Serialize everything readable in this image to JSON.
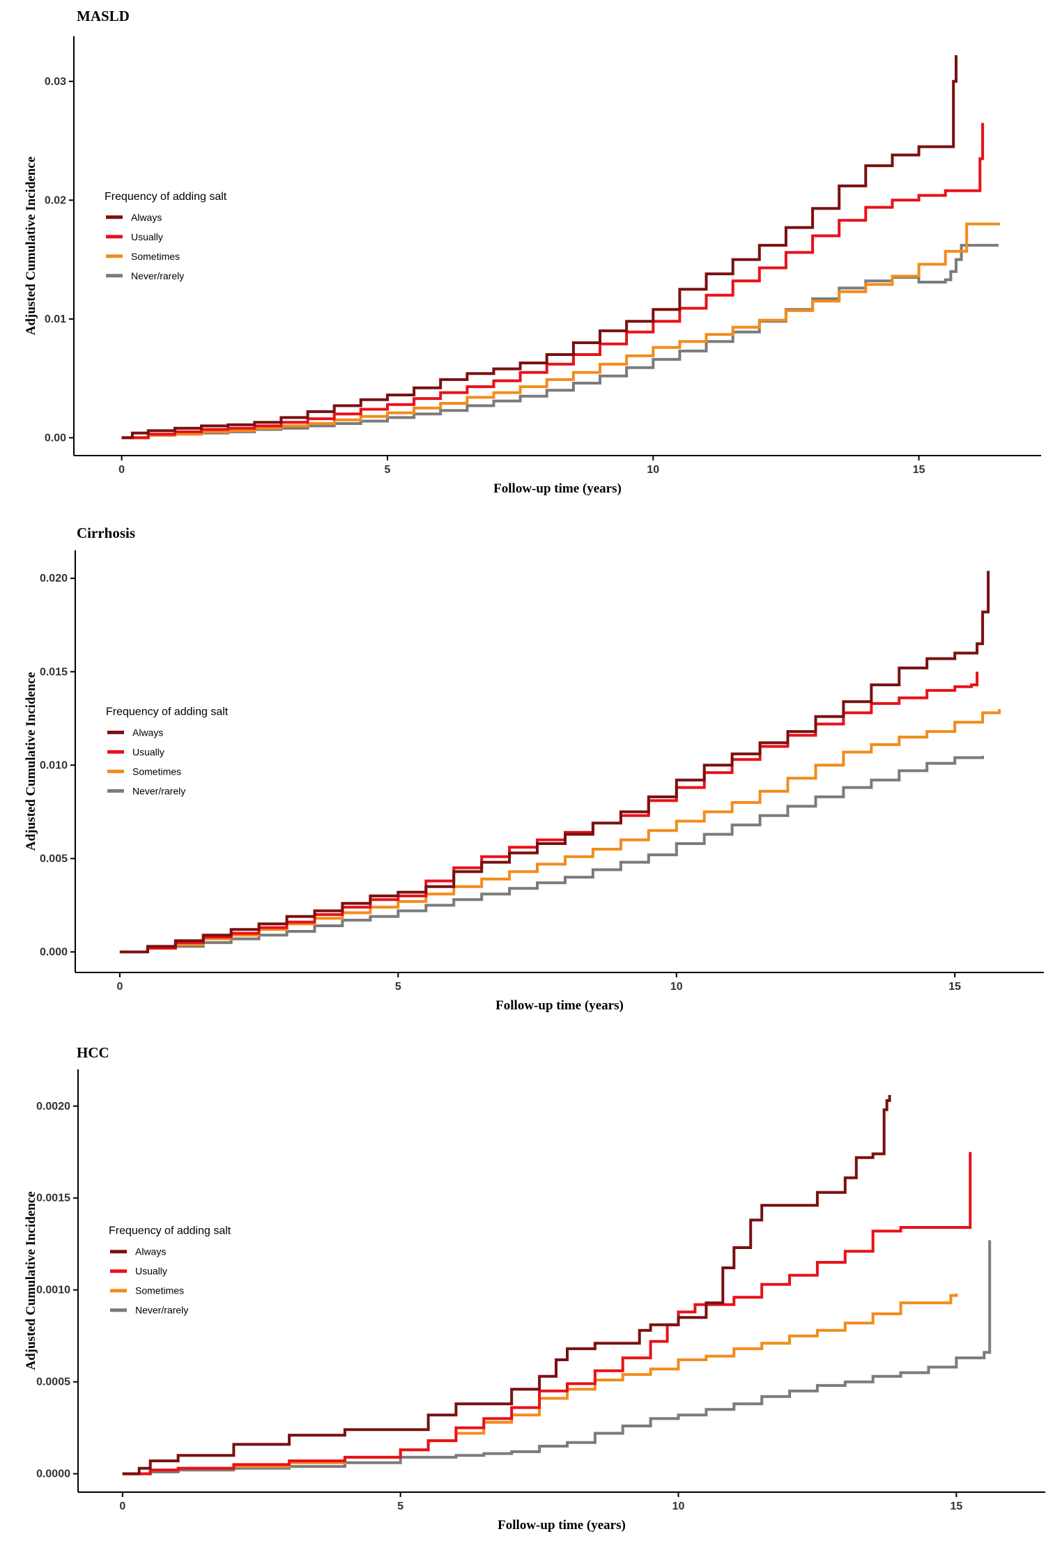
{
  "chart_data": [
    {
      "type": "line",
      "step": true,
      "title": "MASLD",
      "xlabel": "Follow-up time (years)",
      "ylabel": "Adjusted Cumulative Incidence",
      "xlim": [
        -0.9,
        17.3
      ],
      "ylim": [
        -0.0015,
        0.0338
      ],
      "xticks": [
        0,
        5,
        10,
        15
      ],
      "xtick_labels": [
        "0",
        "5",
        "10",
        "15"
      ],
      "yticks": [
        0,
        0.01,
        0.02,
        0.03
      ],
      "ytick_labels": [
        "0.00",
        "0.01",
        "0.02",
        "0.03"
      ],
      "legend_title": "Frequency of adding salt",
      "legend_position": "left",
      "series": [
        {
          "name": "Always",
          "color": "#7a1010",
          "x": [
            0,
            0.2,
            0.5,
            1,
            1.5,
            2,
            2.5,
            3,
            3.5,
            4,
            4.5,
            5,
            5.5,
            6,
            6.5,
            7,
            7.5,
            8,
            8.5,
            9,
            9.5,
            10,
            10.5,
            11,
            11.5,
            12,
            12.5,
            13,
            13.5,
            14,
            14.5,
            15,
            15.6,
            15.65,
            15.7,
            15.7
          ],
          "y": [
            0,
            0.0004,
            0.0006,
            0.0008,
            0.001,
            0.0011,
            0.0013,
            0.0017,
            0.0022,
            0.0027,
            0.0032,
            0.0036,
            0.0042,
            0.0049,
            0.0054,
            0.0058,
            0.0063,
            0.007,
            0.008,
            0.009,
            0.0098,
            0.0108,
            0.0125,
            0.0138,
            0.015,
            0.0162,
            0.0177,
            0.0193,
            0.0212,
            0.0229,
            0.0238,
            0.0245,
            0.0245,
            0.03,
            0.0312,
            0.0322
          ]
        },
        {
          "name": "Usually",
          "color": "#e8111a",
          "x": [
            0,
            0.5,
            1,
            1.5,
            2,
            2.5,
            3,
            3.5,
            4,
            4.5,
            5,
            5.5,
            6,
            6.5,
            7,
            7.5,
            8,
            8.5,
            9,
            9.5,
            10,
            10.5,
            11,
            11.5,
            12,
            12.5,
            13,
            13.5,
            14,
            14.5,
            15,
            15.5,
            16.1,
            16.15,
            16.2,
            16.2
          ],
          "y": [
            0,
            0.0003,
            0.0005,
            0.0007,
            0.0008,
            0.001,
            0.0013,
            0.0016,
            0.002,
            0.0024,
            0.0028,
            0.0033,
            0.0038,
            0.0043,
            0.0048,
            0.0055,
            0.0062,
            0.007,
            0.0079,
            0.0089,
            0.0098,
            0.0109,
            0.012,
            0.0132,
            0.0143,
            0.0156,
            0.017,
            0.0183,
            0.0194,
            0.02,
            0.0204,
            0.0208,
            0.0208,
            0.0235,
            0.0245,
            0.0265
          ]
        },
        {
          "name": "Sometimes",
          "color": "#f28c1c",
          "x": [
            0,
            0.5,
            1,
            1.5,
            2,
            2.5,
            3,
            3.5,
            4,
            4.5,
            5,
            5.5,
            6,
            6.5,
            7,
            7.5,
            8,
            8.5,
            9,
            9.5,
            10,
            10.5,
            11,
            11.5,
            12,
            12.5,
            13,
            13.5,
            14,
            14.5,
            15,
            15.5,
            15.85,
            15.9,
            16.5
          ],
          "y": [
            0,
            0.0002,
            0.0003,
            0.0005,
            0.0006,
            0.0008,
            0.001,
            0.0012,
            0.0015,
            0.0018,
            0.0021,
            0.0025,
            0.0029,
            0.0034,
            0.0038,
            0.0043,
            0.0049,
            0.0055,
            0.0062,
            0.0069,
            0.0076,
            0.0081,
            0.0087,
            0.0093,
            0.0099,
            0.0107,
            0.0115,
            0.0123,
            0.0129,
            0.0136,
            0.0146,
            0.0157,
            0.0157,
            0.018,
            0.0181
          ]
        },
        {
          "name": "Never/rarely",
          "color": "#7b7b7b",
          "x": [
            0,
            0.5,
            1,
            1.5,
            2,
            2.5,
            3,
            3.5,
            4,
            4.5,
            5,
            5.5,
            6,
            6.5,
            7,
            7.5,
            8,
            8.5,
            9,
            9.5,
            10,
            10.5,
            11,
            11.5,
            12,
            12.5,
            13,
            13.5,
            14,
            14.5,
            15,
            15.5,
            15.6,
            15.7,
            15.8,
            16.5
          ],
          "y": [
            0,
            0.0002,
            0.0003,
            0.0004,
            0.0005,
            0.0007,
            0.0008,
            0.001,
            0.0012,
            0.0014,
            0.0017,
            0.002,
            0.0023,
            0.0027,
            0.0031,
            0.0035,
            0.004,
            0.0046,
            0.0052,
            0.0059,
            0.0066,
            0.0073,
            0.0081,
            0.0089,
            0.0098,
            0.0108,
            0.0117,
            0.0126,
            0.0132,
            0.0135,
            0.0131,
            0.0133,
            0.014,
            0.015,
            0.0162,
            0.0162
          ]
        }
      ]
    },
    {
      "type": "line",
      "step": true,
      "title": "Cirrhosis",
      "xlabel": "Follow-up time (years)",
      "ylabel": "Adjusted Cumulative Incidence",
      "xlim": [
        -0.8,
        16.6
      ],
      "ylim": [
        -0.0011,
        0.0215
      ],
      "xticks": [
        0,
        5,
        10,
        15
      ],
      "xtick_labels": [
        "0",
        "5",
        "10",
        "15"
      ],
      "yticks": [
        0,
        0.005,
        0.01,
        0.015,
        0.02
      ],
      "ytick_labels": [
        "0.000",
        "0.005",
        "0.010",
        "0.015",
        "0.020"
      ],
      "legend_title": "Frequency of adding salt",
      "legend_position": "left",
      "series": [
        {
          "name": "Always",
          "color": "#7a1010",
          "x": [
            0,
            0.5,
            1,
            1.5,
            2,
            2.5,
            3,
            3.5,
            4,
            4.5,
            5,
            5.5,
            6,
            6.5,
            7,
            7.5,
            8,
            8.5,
            9,
            9.5,
            10,
            10.5,
            11,
            11.5,
            12,
            12.5,
            13,
            13.5,
            14,
            14.5,
            15,
            15.2,
            15.4,
            15.5,
            15.6,
            15.6
          ],
          "y": [
            0,
            0.0003,
            0.0006,
            0.0009,
            0.0012,
            0.0015,
            0.0019,
            0.0022,
            0.0026,
            0.003,
            0.0032,
            0.0035,
            0.0043,
            0.0048,
            0.0053,
            0.0058,
            0.0063,
            0.0069,
            0.0075,
            0.0083,
            0.0092,
            0.01,
            0.0106,
            0.0112,
            0.0118,
            0.0126,
            0.0134,
            0.0143,
            0.0152,
            0.0157,
            0.016,
            0.016,
            0.0165,
            0.0182,
            0.0195,
            0.0204
          ]
        },
        {
          "name": "Usually",
          "color": "#e8111a",
          "x": [
            0,
            0.5,
            1,
            1.5,
            2,
            2.5,
            3,
            3.5,
            4,
            4.5,
            5,
            5.5,
            6,
            6.5,
            7,
            7.5,
            8,
            8.5,
            9,
            9.5,
            10,
            10.5,
            11,
            11.5,
            12,
            12.5,
            13,
            13.5,
            14,
            14.5,
            15,
            15.3,
            15.4,
            15.4
          ],
          "y": [
            0,
            0.0002,
            0.0005,
            0.0008,
            0.001,
            0.0013,
            0.0016,
            0.002,
            0.0024,
            0.0028,
            0.003,
            0.0038,
            0.0045,
            0.0051,
            0.0056,
            0.006,
            0.0064,
            0.0069,
            0.0073,
            0.0081,
            0.0088,
            0.0096,
            0.0103,
            0.011,
            0.0116,
            0.0122,
            0.0128,
            0.0133,
            0.0136,
            0.014,
            0.0142,
            0.0143,
            0.0148,
            0.015
          ]
        },
        {
          "name": "Sometimes",
          "color": "#f28c1c",
          "x": [
            0,
            0.5,
            1,
            1.5,
            2,
            2.5,
            3,
            3.5,
            4,
            4.5,
            5,
            5.5,
            6,
            6.5,
            7,
            7.5,
            8,
            8.5,
            9,
            9.5,
            10,
            10.5,
            11,
            11.5,
            12,
            12.5,
            13,
            13.5,
            14,
            14.5,
            15,
            15.5,
            15.8
          ],
          "y": [
            0,
            0.0002,
            0.0004,
            0.0007,
            0.0009,
            0.0012,
            0.0015,
            0.0018,
            0.0021,
            0.0024,
            0.0027,
            0.0031,
            0.0035,
            0.0039,
            0.0043,
            0.0047,
            0.0051,
            0.0055,
            0.006,
            0.0065,
            0.007,
            0.0075,
            0.008,
            0.0086,
            0.0093,
            0.01,
            0.0107,
            0.0111,
            0.0115,
            0.0118,
            0.0123,
            0.0128,
            0.013
          ]
        },
        {
          "name": "Never/rarely",
          "color": "#7b7b7b",
          "x": [
            0,
            0.5,
            1,
            1.5,
            2,
            2.5,
            3,
            3.5,
            4,
            4.5,
            5,
            5.5,
            6,
            6.5,
            7,
            7.5,
            8,
            8.5,
            9,
            9.5,
            10,
            10.5,
            11,
            11.5,
            12,
            12.5,
            13,
            13.5,
            14,
            14.5,
            15,
            15.5
          ],
          "y": [
            0,
            0.0002,
            0.0003,
            0.0005,
            0.0007,
            0.0009,
            0.0011,
            0.0014,
            0.0017,
            0.0019,
            0.0022,
            0.0025,
            0.0028,
            0.0031,
            0.0034,
            0.0037,
            0.004,
            0.0044,
            0.0048,
            0.0052,
            0.0058,
            0.0063,
            0.0068,
            0.0073,
            0.0078,
            0.0083,
            0.0088,
            0.0092,
            0.0097,
            0.0101,
            0.0104,
            0.0105
          ]
        }
      ]
    },
    {
      "type": "line",
      "step": true,
      "title": "HCC",
      "xlabel": "Follow-up time (years)",
      "ylabel": "Adjusted Cumulative Incidence",
      "xlim": [
        -0.8,
        16.6
      ],
      "ylim": [
        -0.0001,
        0.0022
      ],
      "xticks": [
        0,
        5,
        10,
        15
      ],
      "xtick_labels": [
        "0",
        "5",
        "10",
        "15"
      ],
      "yticks": [
        0,
        0.0005,
        0.001,
        0.0015,
        0.002
      ],
      "ytick_labels": [
        "0.0000",
        "0.0005",
        "0.0010",
        "0.0015",
        "0.0020"
      ],
      "legend_title": "Frequency of adding salt",
      "legend_position": "left",
      "series": [
        {
          "name": "Always",
          "color": "#7a1010",
          "x": [
            0,
            0.3,
            0.5,
            1,
            2,
            3,
            4,
            5,
            5.5,
            6,
            6.5,
            7,
            7.5,
            7.8,
            8,
            8.5,
            9,
            9.3,
            9.5,
            10,
            10.5,
            10.8,
            11,
            11.3,
            11.5,
            12,
            12.5,
            13,
            13.2,
            13.5,
            13.7,
            13.75,
            13.8
          ],
          "y": [
            0,
            3e-05,
            7e-05,
            0.0001,
            0.00016,
            0.00021,
            0.00024,
            0.00024,
            0.00032,
            0.00038,
            0.00038,
            0.00046,
            0.00053,
            0.00062,
            0.00068,
            0.00071,
            0.00071,
            0.00078,
            0.00081,
            0.00085,
            0.00093,
            0.00112,
            0.00123,
            0.00138,
            0.00146,
            0.00146,
            0.00153,
            0.00161,
            0.00172,
            0.00174,
            0.00198,
            0.00203,
            0.00206
          ]
        },
        {
          "name": "Usually",
          "color": "#e8111a",
          "x": [
            0,
            0.5,
            1,
            2,
            3,
            4,
            5,
            5.5,
            6,
            6.5,
            7,
            7.5,
            8,
            8.5,
            9,
            9.5,
            9.8,
            10,
            10.3,
            10.5,
            11,
            11.5,
            12,
            12.5,
            13,
            13.5,
            14,
            14.5,
            15,
            15.2,
            15.25
          ],
          "y": [
            0,
            2e-05,
            3e-05,
            5e-05,
            7e-05,
            9e-05,
            0.00013,
            0.00018,
            0.00025,
            0.0003,
            0.00036,
            0.00045,
            0.00049,
            0.00056,
            0.00063,
            0.00072,
            0.00081,
            0.00088,
            0.00092,
            0.00092,
            0.00096,
            0.00103,
            0.00108,
            0.00115,
            0.00121,
            0.00132,
            0.00134,
            0.00134,
            0.00134,
            0.00134,
            0.00175
          ]
        },
        {
          "name": "Sometimes",
          "color": "#f28c1c",
          "x": [
            0,
            0.5,
            1,
            2,
            3,
            4,
            5,
            5.5,
            6,
            6.5,
            7,
            7.5,
            8,
            8.5,
            9,
            9.5,
            10,
            10.5,
            11,
            11.5,
            12,
            12.5,
            13,
            13.5,
            14,
            14.5,
            14.8,
            14.9,
            15
          ],
          "y": [
            0,
            2e-05,
            3e-05,
            4e-05,
            6e-05,
            9e-05,
            0.00013,
            0.00018,
            0.00022,
            0.00028,
            0.00032,
            0.00041,
            0.00046,
            0.00051,
            0.00054,
            0.00057,
            0.00062,
            0.00064,
            0.00068,
            0.00071,
            0.00075,
            0.00078,
            0.00082,
            0.00087,
            0.00093,
            0.00093,
            0.00093,
            0.00097,
            0.00098
          ]
        },
        {
          "name": "Never/rarely",
          "color": "#7b7b7b",
          "x": [
            0,
            0.5,
            1,
            2,
            3,
            4,
            5,
            5.5,
            6,
            6.5,
            7,
            7.5,
            8,
            8.5,
            9,
            9.5,
            10,
            10.5,
            11,
            11.5,
            12,
            12.5,
            13,
            13.5,
            14,
            14.5,
            15,
            15.5,
            15.6,
            15.6
          ],
          "y": [
            0,
            1e-05,
            2e-05,
            3e-05,
            4e-05,
            6e-05,
            9e-05,
            9e-05,
            0.0001,
            0.00011,
            0.00012,
            0.00015,
            0.00017,
            0.00022,
            0.00026,
            0.0003,
            0.00032,
            0.00035,
            0.00038,
            0.00042,
            0.00045,
            0.00048,
            0.0005,
            0.00053,
            0.00055,
            0.00058,
            0.00063,
            0.00066,
            0.00066,
            0.00127
          ]
        }
      ]
    }
  ]
}
